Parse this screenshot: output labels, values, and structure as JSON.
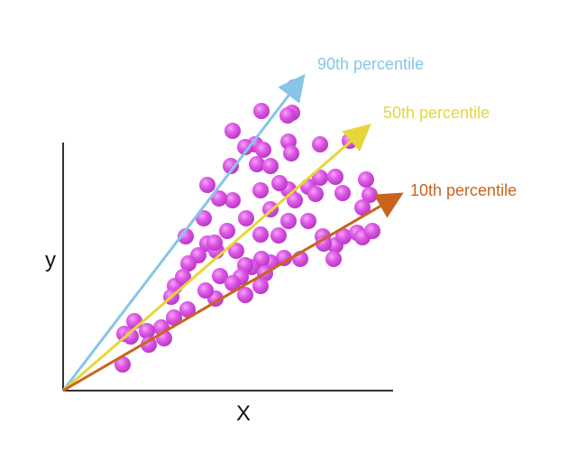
{
  "diagram": {
    "x_axis_label": "X",
    "y_axis_label": "y",
    "arrows": [
      {
        "name": "90th percentile",
        "label": "90th percentile",
        "color": "#87c5e8"
      },
      {
        "name": "50th percentile",
        "label": "50th percentile",
        "color": "#e8d53a"
      },
      {
        "name": "10th percentile",
        "label": "10th percentile",
        "color": "#c9641f"
      }
    ],
    "point_color": "#d94ee3",
    "point_count": 80
  }
}
